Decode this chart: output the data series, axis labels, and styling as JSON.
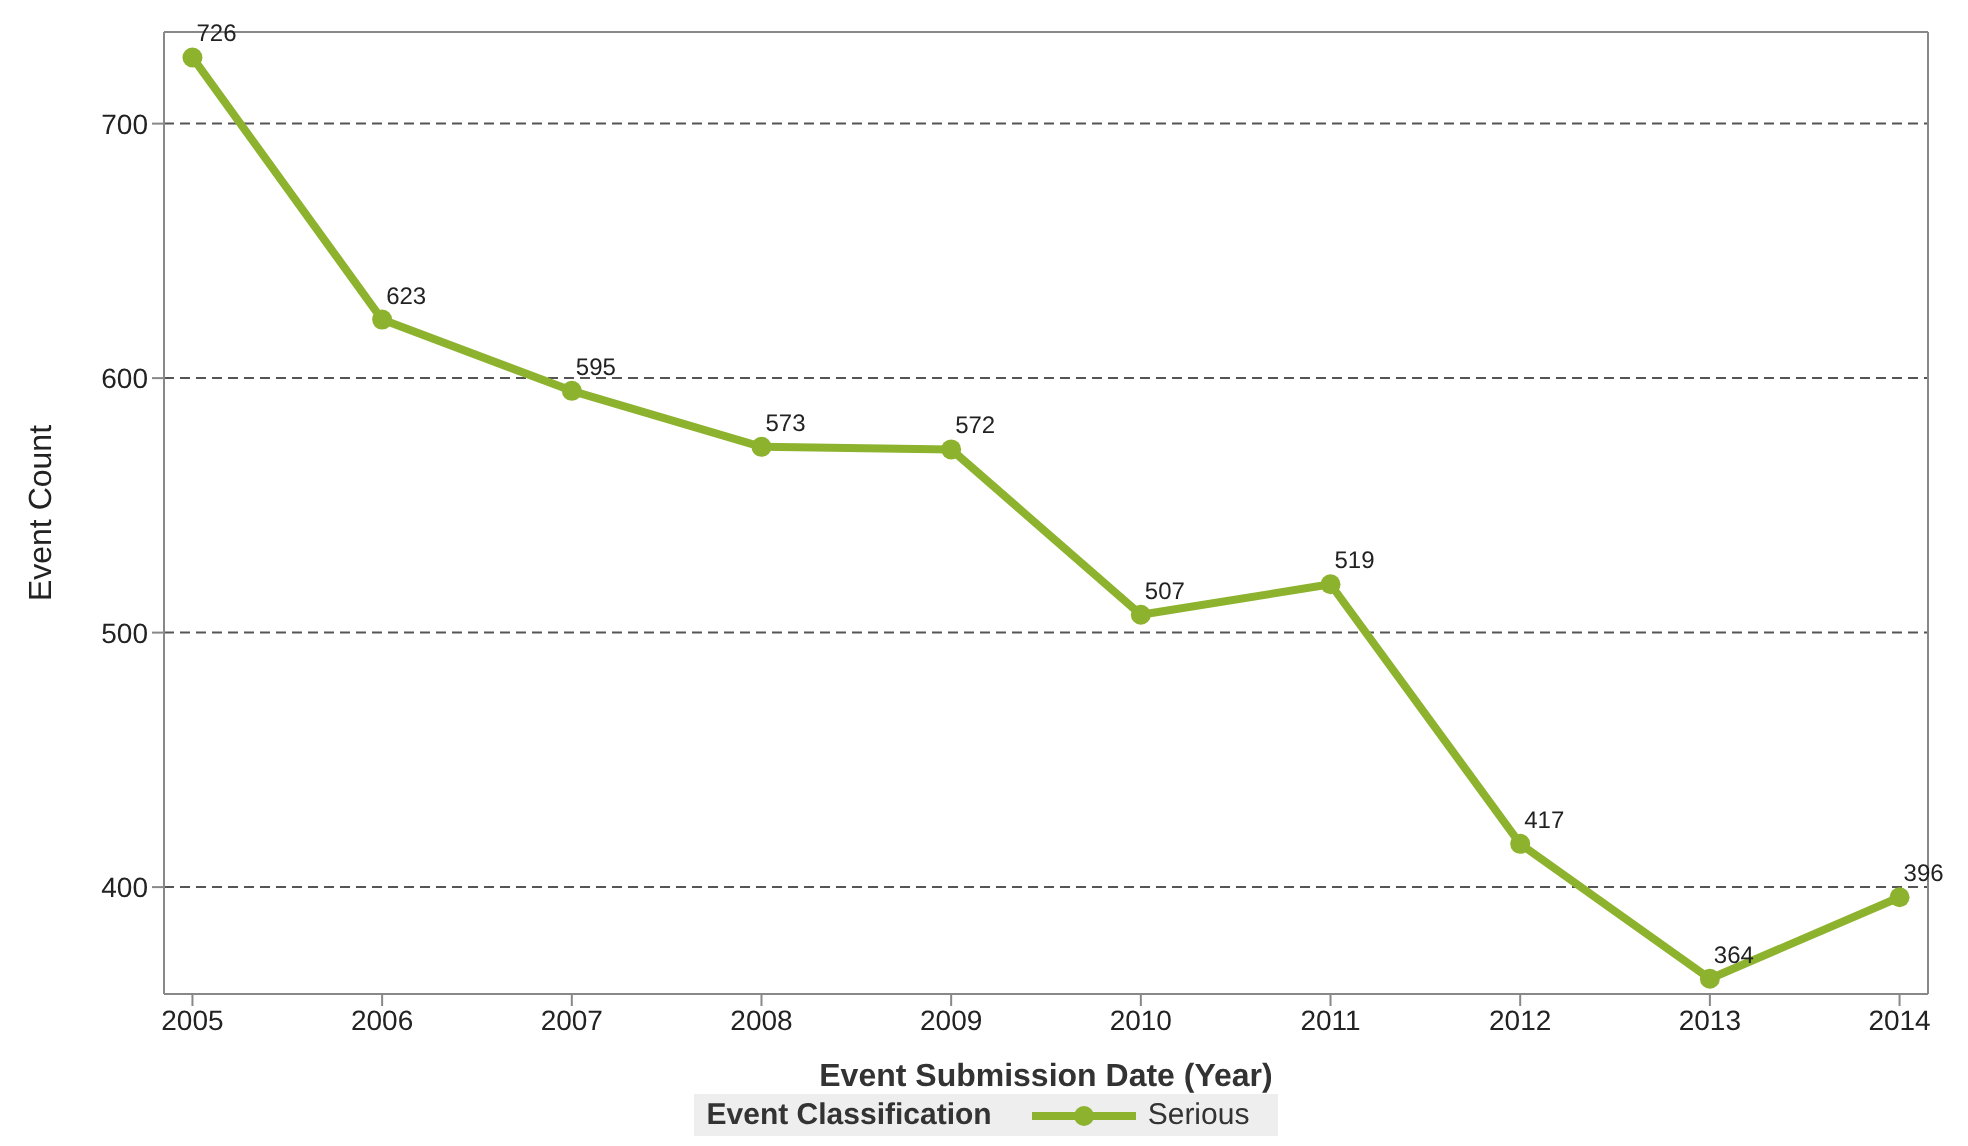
{
  "chart_data": {
    "type": "line",
    "xlabel": "Event Submission Date (Year)",
    "ylabel": "Event Count",
    "legend_title": "Event Classification",
    "x": [
      2005,
      2006,
      2007,
      2008,
      2009,
      2010,
      2011,
      2012,
      2013,
      2014
    ],
    "series": [
      {
        "name": "Serious",
        "color": "#8db32e",
        "values": [
          726,
          623,
          595,
          573,
          572,
          507,
          519,
          417,
          364,
          396
        ]
      }
    ],
    "xlim": [
      2004.85,
      2014.15
    ],
    "xticks": [
      2005,
      2006,
      2007,
      2008,
      2009,
      2010,
      2011,
      2012,
      2013,
      2014
    ],
    "ylim": [
      358,
      736
    ],
    "yticks": [
      400,
      500,
      600,
      700
    ],
    "grid": "y",
    "legend": "bottom",
    "marker": "circle",
    "line_style": "solid",
    "data_labels": true
  }
}
